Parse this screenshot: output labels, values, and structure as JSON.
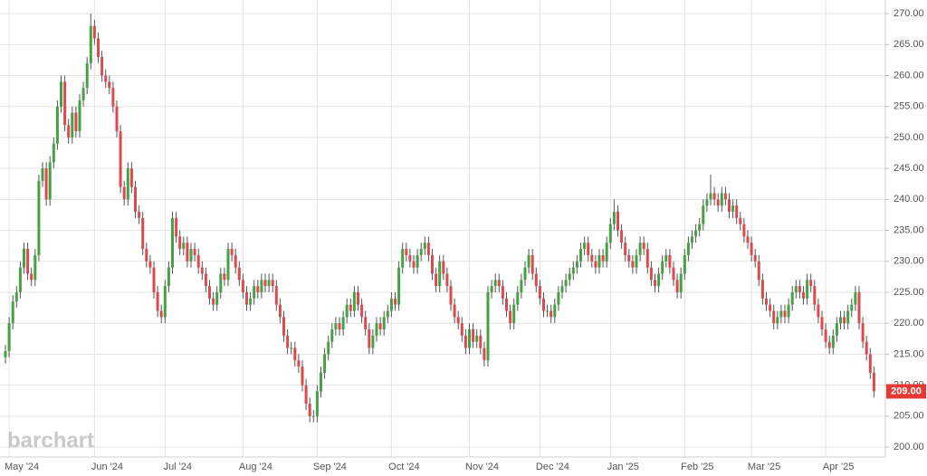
{
  "chart_data": {
    "type": "candlestick",
    "watermark": "barchart",
    "up_color": "#46a046",
    "down_color": "#dc4a4f",
    "grid": true,
    "ylim": [
      198.4,
      272.2
    ],
    "yticks": [
      {
        "value": 200,
        "label": "200.00"
      },
      {
        "value": 205,
        "label": "205.00"
      },
      {
        "value": 210,
        "label": "210.00"
      },
      {
        "value": 215,
        "label": "215.00"
      },
      {
        "value": 220,
        "label": "220.00"
      },
      {
        "value": 225,
        "label": "225.00"
      },
      {
        "value": 230,
        "label": "230.00"
      },
      {
        "value": 235,
        "label": "235.00"
      },
      {
        "value": 240,
        "label": "240.00"
      },
      {
        "value": 245,
        "label": "245.00"
      },
      {
        "value": 250,
        "label": "250.00"
      },
      {
        "value": 255,
        "label": "255.00"
      },
      {
        "value": 260,
        "label": "260.00"
      },
      {
        "value": 265,
        "label": "265.00"
      },
      {
        "value": 270,
        "label": "270.00"
      }
    ],
    "last_price": {
      "value": 209,
      "label": "209.00",
      "color": "#e53935"
    },
    "categories": [
      null,
      "May '24",
      null,
      null,
      null,
      null,
      null,
      null,
      null,
      null,
      null,
      null,
      null,
      null,
      null,
      null,
      null,
      null,
      null,
      null,
      null,
      null,
      null,
      null,
      "Jun '24",
      null,
      null,
      null,
      null,
      null,
      null,
      null,
      null,
      null,
      null,
      null,
      null,
      null,
      null,
      null,
      null,
      null,
      null,
      "Jul '24",
      null,
      null,
      null,
      null,
      null,
      null,
      null,
      null,
      null,
      null,
      null,
      null,
      null,
      null,
      null,
      null,
      null,
      null,
      null,
      null,
      "Aug '24",
      null,
      null,
      null,
      null,
      null,
      null,
      null,
      null,
      null,
      null,
      null,
      null,
      null,
      null,
      null,
      null,
      null,
      null,
      null,
      "Sep '24",
      null,
      null,
      null,
      null,
      null,
      null,
      null,
      null,
      null,
      null,
      null,
      null,
      null,
      null,
      null,
      null,
      null,
      null,
      null,
      "Oct '24",
      null,
      null,
      null,
      null,
      null,
      null,
      null,
      null,
      null,
      null,
      null,
      null,
      null,
      null,
      null,
      null,
      null,
      null,
      null,
      null,
      "Nov '24",
      null,
      null,
      null,
      null,
      null,
      null,
      null,
      null,
      null,
      null,
      null,
      null,
      null,
      null,
      null,
      null,
      null,
      null,
      "Dec '24",
      null,
      null,
      null,
      null,
      null,
      null,
      null,
      null,
      null,
      null,
      null,
      null,
      null,
      null,
      null,
      null,
      null,
      null,
      "Jan '25",
      null,
      null,
      null,
      null,
      null,
      null,
      null,
      null,
      null,
      null,
      null,
      null,
      null,
      null,
      null,
      null,
      null,
      null,
      null,
      "Feb '25",
      null,
      null,
      null,
      null,
      null,
      null,
      null,
      null,
      null,
      null,
      null,
      null,
      null,
      null,
      null,
      null,
      null,
      "Mar '25",
      null,
      null,
      null,
      null,
      null,
      null,
      null,
      null,
      null,
      null,
      null,
      null,
      null,
      null,
      null,
      null,
      null,
      null,
      null,
      "Apr '25",
      null,
      null,
      null,
      null,
      null,
      null,
      null,
      null,
      null,
      null,
      null,
      null,
      null
    ],
    "open": [
      214.5,
      215.5,
      220,
      223.5,
      225,
      229,
      232,
      228,
      227,
      231,
      243,
      245,
      240,
      246,
      249,
      255,
      259,
      252,
      250,
      254,
      251,
      256,
      258,
      262,
      268,
      266,
      263,
      260,
      259,
      258,
      255,
      251,
      242,
      240,
      245,
      242,
      238,
      237,
      232,
      230,
      229,
      225,
      222,
      221,
      226,
      229,
      237,
      234,
      232,
      233,
      230,
      232,
      231,
      229,
      228,
      226,
      224,
      223,
      225,
      228,
      227,
      232,
      231,
      229,
      227,
      225,
      223,
      224,
      226,
      225,
      227,
      226,
      227,
      226,
      223,
      221,
      218,
      216,
      216,
      214,
      213,
      210,
      207,
      205,
      205,
      209,
      212,
      215,
      217,
      219,
      220,
      219,
      221,
      223,
      222,
      225,
      223,
      221,
      219,
      216,
      218,
      220,
      219,
      221,
      222,
      224,
      223,
      229,
      232,
      231,
      230,
      229,
      231,
      232,
      233,
      231,
      228,
      226,
      230,
      228,
      226,
      223,
      221,
      220,
      218,
      216,
      219,
      217,
      218,
      216,
      214,
      225,
      226,
      227,
      226,
      224,
      222,
      220,
      223,
      225,
      227,
      229,
      231,
      228,
      226,
      224,
      222,
      222,
      221,
      223,
      225,
      226,
      227,
      228,
      229,
      230,
      232,
      233,
      231,
      230,
      229,
      231,
      230,
      233,
      236,
      238,
      235,
      233,
      231,
      230,
      229,
      231,
      233,
      232,
      229,
      227,
      226,
      228,
      230,
      231,
      229,
      227,
      225,
      228,
      231,
      233,
      234,
      235,
      236,
      239,
      240,
      241,
      240,
      239,
      241,
      240,
      238,
      239,
      237,
      236,
      234,
      233,
      231,
      230,
      227,
      224,
      223,
      222,
      220,
      221,
      222,
      221,
      223,
      225,
      226,
      225,
      224,
      227,
      226,
      223,
      221,
      219,
      217,
      216,
      218,
      220,
      221,
      220,
      222,
      223,
      225,
      220,
      217,
      215,
      212
    ],
    "high": [
      216.5,
      221,
      224.5,
      226,
      230,
      233,
      233,
      229,
      232,
      244,
      246,
      246,
      247,
      250,
      256,
      260,
      260,
      253,
      255,
      255,
      257,
      259,
      263,
      270,
      269,
      267,
      264,
      261,
      260,
      259,
      256,
      252,
      243,
      246,
      246,
      243,
      239,
      238,
      233,
      231,
      230,
      226,
      223,
      227,
      230,
      238,
      238,
      235,
      234,
      234,
      233,
      233,
      232,
      230,
      229,
      227,
      225,
      226,
      229,
      229,
      233,
      233,
      232,
      230,
      228,
      226,
      225,
      227,
      227,
      228,
      228,
      228,
      228,
      227,
      224,
      222,
      219,
      217,
      217,
      215,
      214,
      211,
      208,
      206,
      210,
      213,
      216,
      218,
      220,
      221,
      221,
      222,
      224,
      224,
      226,
      226,
      224,
      222,
      220,
      219,
      221,
      221,
      222,
      223,
      225,
      225,
      230,
      233,
      233,
      232,
      231,
      232,
      233,
      234,
      234,
      232,
      229,
      231,
      231,
      229,
      227,
      224,
      222,
      221,
      219,
      220,
      220,
      219,
      219,
      217,
      226,
      227,
      228,
      228,
      227,
      225,
      223,
      224,
      226,
      228,
      230,
      232,
      232,
      229,
      227,
      225,
      223,
      223,
      224,
      226,
      227,
      228,
      229,
      230,
      231,
      233,
      234,
      234,
      232,
      231,
      232,
      232,
      234,
      237,
      240,
      239,
      236,
      234,
      232,
      231,
      232,
      234,
      234,
      233,
      230,
      228,
      229,
      231,
      232,
      232,
      230,
      228,
      229,
      232,
      234,
      235,
      236,
      237,
      240,
      241,
      244,
      242,
      241,
      242,
      242,
      241,
      240,
      240,
      238,
      237,
      235,
      234,
      232,
      231,
      228,
      225,
      224,
      223,
      222,
      223,
      223,
      224,
      226,
      227,
      227,
      226,
      228,
      228,
      227,
      224,
      222,
      220,
      218,
      219,
      221,
      222,
      222,
      223,
      224,
      226,
      226,
      221,
      218,
      216,
      213
    ],
    "low": [
      213.5,
      214.5,
      219,
      222.5,
      224,
      228,
      227,
      226,
      226,
      230,
      242,
      239,
      239,
      245,
      248,
      254,
      251,
      249,
      249,
      250,
      250,
      255,
      257,
      261,
      265,
      262,
      259,
      258,
      257,
      254,
      250,
      241,
      239,
      239,
      241,
      237,
      236,
      231,
      229,
      228,
      224,
      221,
      220,
      220,
      225,
      228,
      233,
      231,
      231,
      229,
      229,
      230,
      228,
      227,
      225,
      223,
      222,
      222,
      224,
      226,
      226,
      230,
      228,
      226,
      224,
      222,
      222,
      223,
      224,
      224,
      225,
      225,
      225,
      222,
      220,
      217,
      215,
      215,
      213,
      212,
      209,
      206,
      204,
      204,
      204,
      208,
      211,
      214,
      216,
      218,
      218,
      218,
      220,
      221,
      221,
      222,
      220,
      218,
      215,
      215,
      217,
      218,
      218,
      220,
      221,
      222,
      222,
      228,
      230,
      229,
      228,
      228,
      230,
      231,
      230,
      227,
      225,
      225,
      227,
      225,
      222,
      220,
      219,
      217,
      215,
      215,
      216,
      216,
      215,
      213,
      213,
      224,
      225,
      225,
      223,
      221,
      219,
      219,
      222,
      224,
      226,
      228,
      227,
      225,
      223,
      221,
      221,
      220,
      220,
      222,
      224,
      225,
      226,
      227,
      228,
      229,
      231,
      230,
      229,
      228,
      228,
      229,
      229,
      232,
      235,
      234,
      232,
      230,
      229,
      228,
      228,
      230,
      231,
      228,
      226,
      225,
      225,
      227,
      229,
      228,
      226,
      224,
      224,
      227,
      230,
      232,
      233,
      234,
      235,
      238,
      239,
      239,
      238,
      238,
      239,
      237,
      237,
      236,
      235,
      233,
      232,
      230,
      229,
      226,
      223,
      222,
      221,
      219,
      219,
      220,
      220,
      220,
      222,
      224,
      224,
      223,
      223,
      225,
      222,
      220,
      218,
      216,
      215,
      215,
      217,
      219,
      219,
      219,
      221,
      222,
      219,
      216,
      214,
      211,
      208
    ],
    "close": [
      215.5,
      220,
      223.5,
      225,
      229,
      232,
      228,
      227,
      231,
      243,
      245,
      240,
      246,
      249,
      255,
      259,
      252,
      250,
      254,
      251,
      256,
      258,
      262,
      268,
      266,
      263,
      260,
      259,
      258,
      255,
      251,
      242,
      240,
      245,
      242,
      238,
      237,
      232,
      230,
      229,
      225,
      222,
      221,
      226,
      229,
      237,
      234,
      232,
      233,
      230,
      232,
      231,
      229,
      228,
      226,
      224,
      223,
      225,
      228,
      227,
      232,
      231,
      229,
      227,
      225,
      223,
      224,
      226,
      225,
      227,
      226,
      227,
      226,
      223,
      221,
      218,
      216,
      216,
      214,
      213,
      210,
      207,
      205,
      205,
      209,
      212,
      215,
      217,
      219,
      220,
      219,
      221,
      223,
      222,
      225,
      223,
      221,
      219,
      216,
      218,
      220,
      219,
      221,
      222,
      224,
      223,
      229,
      232,
      231,
      230,
      229,
      231,
      232,
      233,
      231,
      228,
      226,
      230,
      228,
      226,
      223,
      221,
      220,
      218,
      216,
      219,
      217,
      218,
      216,
      214,
      225,
      226,
      227,
      226,
      224,
      222,
      220,
      223,
      225,
      227,
      229,
      231,
      228,
      226,
      224,
      222,
      222,
      221,
      223,
      225,
      226,
      227,
      228,
      229,
      230,
      232,
      233,
      231,
      230,
      229,
      231,
      230,
      233,
      236,
      238,
      235,
      233,
      231,
      230,
      229,
      231,
      233,
      232,
      229,
      227,
      226,
      228,
      230,
      231,
      229,
      227,
      225,
      228,
      231,
      233,
      234,
      235,
      236,
      239,
      240,
      241,
      240,
      239,
      241,
      240,
      238,
      239,
      237,
      236,
      234,
      233,
      231,
      230,
      227,
      224,
      223,
      222,
      220,
      221,
      222,
      221,
      223,
      225,
      226,
      225,
      224,
      227,
      226,
      223,
      221,
      219,
      217,
      216,
      218,
      220,
      221,
      220,
      222,
      223,
      225,
      220,
      217,
      215,
      212,
      209
    ]
  }
}
